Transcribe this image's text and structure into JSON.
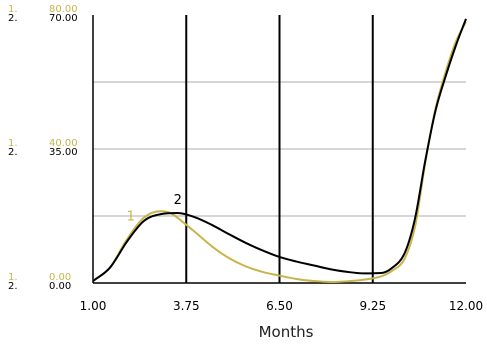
{
  "chart_data": {
    "type": "line",
    "title": "",
    "xlabel": "Months",
    "ylabel": "",
    "xlim": [
      1.0,
      12.0
    ],
    "x_ticks": [
      "1.00",
      "3.75",
      "6.50",
      "9.25",
      "12.00"
    ],
    "x_tick_values": [
      1.0,
      3.75,
      6.5,
      9.25,
      12.0
    ],
    "grid": "vertical lines at x ticks, horizontal lines at quarter levels",
    "series": [
      {
        "name": "1",
        "color": "#c8b44a",
        "ylim": [
          0,
          80
        ],
        "scale_labels": {
          "top": "80.00",
          "mid": "40.00",
          "bottom": "0.00"
        },
        "scale_prefix": "1.",
        "x": [
          1.0,
          1.5,
          2.0,
          2.5,
          3.0,
          3.3,
          3.6,
          4.0,
          4.5,
          5.0,
          5.5,
          6.0,
          6.5,
          7.0,
          7.5,
          8.0,
          8.5,
          9.0,
          9.5,
          9.8,
          10.2,
          10.5,
          10.8,
          11.1,
          11.4,
          11.7,
          12.0
        ],
        "y": [
          0.6,
          4.6,
          13.0,
          19.5,
          21.4,
          20.8,
          18.6,
          15.3,
          11.0,
          7.5,
          5.0,
          3.3,
          2.2,
          1.2,
          0.6,
          0.3,
          0.5,
          1.0,
          2.0,
          3.5,
          7.5,
          17.0,
          36.0,
          52.0,
          63.0,
          72.0,
          78.0
        ]
      },
      {
        "name": "2",
        "color": "#000000",
        "ylim": [
          0,
          70
        ],
        "scale_labels": {
          "top": "70.00",
          "mid": "35.00",
          "bottom": "0.00"
        },
        "scale_prefix": "2.",
        "x": [
          1.0,
          1.5,
          2.0,
          2.5,
          3.0,
          3.5,
          4.0,
          4.5,
          5.0,
          5.5,
          6.0,
          6.5,
          7.0,
          7.5,
          8.0,
          8.5,
          9.0,
          9.5,
          9.8,
          10.2,
          10.5,
          10.8,
          11.1,
          11.4,
          11.7,
          12.0
        ],
        "y": [
          0.5,
          4.0,
          10.8,
          16.2,
          18.0,
          18.3,
          17.2,
          15.2,
          12.8,
          10.5,
          8.5,
          6.8,
          5.6,
          4.6,
          3.6,
          2.9,
          2.5,
          2.6,
          3.8,
          8.0,
          17.0,
          32.0,
          45.0,
          54.0,
          62.0,
          69.0
        ]
      }
    ]
  }
}
